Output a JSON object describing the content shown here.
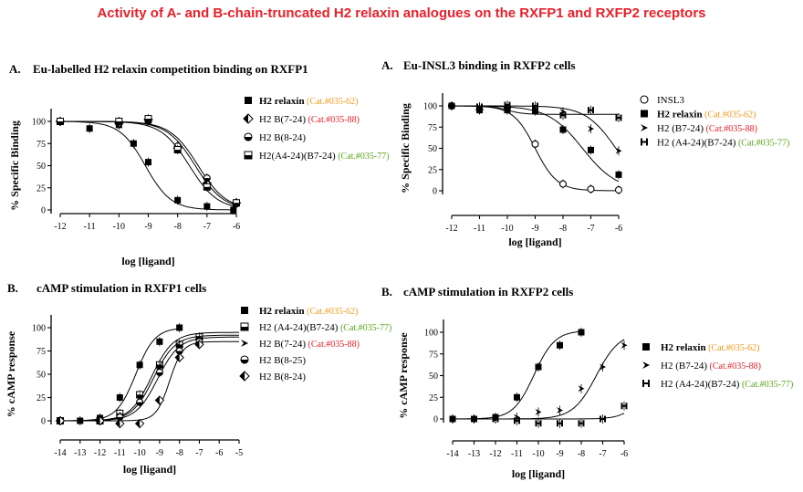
{
  "title": "Activity of A- and B-chain-truncated H2 relaxin analogues on the RXFP1 and RXFP2 receptors",
  "colors": {
    "title": "#e8202a",
    "cat_orange": "#ef9a1a",
    "cat_red": "#e8202a",
    "cat_green": "#5aa61b",
    "ink": "#000000"
  },
  "chart_data": [
    {
      "id": "p1",
      "type": "scatter",
      "panel_letter": "A.",
      "title": "Eu-labelled H2 relaxin competition binding on RXFP1",
      "xlabel": "log [ligand]",
      "ylabel": "% Specific Binding",
      "xlim": [
        -12,
        -6
      ],
      "ylim": [
        0,
        100
      ],
      "xticks": [
        "-12",
        "-11",
        "-10",
        "-9",
        "-8",
        "-7",
        "-6"
      ],
      "yticks": [
        "0",
        "25",
        "50",
        "75",
        "100"
      ],
      "legend": "right",
      "series": [
        {
          "name": "H2 relaxin",
          "cat": "(Cat.#035-62)",
          "cat_color": "orange",
          "marker": "square",
          "x": [
            -12,
            -11,
            -10,
            -9.5,
            -9,
            -8,
            -7,
            -6.1
          ],
          "y": [
            100,
            92,
            96,
            75,
            54,
            11,
            4,
            0
          ],
          "ec50": -9.1,
          "hill": 1.0
        },
        {
          "name": "H2 B(7-24)",
          "cat": "(Cat.#035-88)",
          "cat_color": "red",
          "marker": "diamond-half",
          "x": [
            -12,
            -10,
            -9,
            -8,
            -7,
            -6
          ],
          "y": [
            100,
            98,
            102,
            70,
            30,
            8
          ],
          "ec50": -7.4,
          "hill": 0.9
        },
        {
          "name": "H2 B(8-24)",
          "cat": "",
          "cat_color": "",
          "marker": "circle-half",
          "x": [
            -12,
            -10,
            -9,
            -8,
            -7,
            -6
          ],
          "y": [
            100,
            100,
            100,
            72,
            36,
            7
          ],
          "ec50": -7.3,
          "hill": 0.9
        },
        {
          "name": "H2(A4-24)(B7-24)",
          "cat": "(Cat.#035-77)",
          "cat_color": "green",
          "marker": "square-half",
          "x": [
            -12,
            -10,
            -9,
            -8,
            -7,
            -6
          ],
          "y": [
            100,
            100,
            103,
            68,
            26,
            8
          ],
          "ec50": -7.6,
          "hill": 0.9
        }
      ]
    },
    {
      "id": "p2",
      "type": "scatter",
      "panel_letter": "A.",
      "title": "Eu-INSL3 binding in RXFP2 cells",
      "xlabel": "log [ligand]",
      "ylabel": "% Specific Binding",
      "xlim": [
        -12,
        -6
      ],
      "ylim": [
        0,
        100
      ],
      "xticks": [
        "-12",
        "-11",
        "-10",
        "-9",
        "-8",
        "-7",
        "-6"
      ],
      "yticks": [
        "0",
        "25",
        "50",
        "75",
        "100"
      ],
      "legend": "right",
      "series": [
        {
          "name": "INSL3",
          "cat": "",
          "cat_color": "",
          "marker": "circle-open",
          "x": [
            -12,
            -11,
            -10,
            -9,
            -8,
            -7,
            -6
          ],
          "y": [
            100,
            96,
            98,
            55,
            8,
            2,
            1
          ],
          "ec50": -9.0,
          "hill": 1.1
        },
        {
          "name": "H2 relaxin",
          "cat": "(Cat.#035-62)",
          "cat_color": "orange",
          "marker": "square",
          "x": [
            -12,
            -11,
            -10,
            -9,
            -8,
            -7,
            -6
          ],
          "y": [
            100,
            95,
            95,
            94,
            72,
            48,
            19
          ],
          "ec50": -7.3,
          "hill": 0.7
        },
        {
          "name": "H2 (B7-24)",
          "cat": "(Cat.#035-88)",
          "cat_color": "red",
          "marker": "arrow",
          "x": [
            -12,
            -11,
            -10,
            -9,
            -8,
            -7,
            -6
          ],
          "y": [
            100,
            98,
            97,
            97,
            93,
            73,
            47
          ],
          "ec50": -6.1,
          "hill": 0.8
        },
        {
          "name": "H2 (A4-24)(B7-24)",
          "cat": "(Cat.#035-77)",
          "cat_color": "green",
          "marker": "barbell",
          "x": [
            -12,
            -11,
            -10,
            -9,
            -8,
            -7,
            -6
          ],
          "y": [
            100,
            99,
            101,
            100,
            89,
            95,
            86
          ],
          "flat": 90
        }
      ]
    },
    {
      "id": "p3",
      "type": "scatter",
      "panel_letter": "B.",
      "title": "cAMP stimulation in RXFP1 cells",
      "xlabel": "log [ligand]",
      "ylabel": "% cAMP response",
      "xlim": [
        -14,
        -5
      ],
      "ylim": [
        0,
        100
      ],
      "xticks": [
        "-14",
        "-13",
        "-12",
        "-11",
        "-10",
        "-9",
        "-8",
        "-7",
        "-6",
        "-5"
      ],
      "yticks": [
        "0",
        "25",
        "50",
        "75",
        "100"
      ],
      "legend": "right",
      "series": [
        {
          "name": "H2 relaxin",
          "cat": "(Cat.#035-62)",
          "cat_color": "orange",
          "marker": "square",
          "x": [
            -14,
            -13,
            -12,
            -11,
            -10,
            -9,
            -8
          ],
          "y": [
            0,
            0,
            3,
            25,
            60,
            85,
            100
          ],
          "ec50": -10.2,
          "hill": 0.9,
          "top": 100,
          "fit_to": -8
        },
        {
          "name": "H2 (A4-24)(B7-24)",
          "cat": "(Cat.#035-77)",
          "cat_color": "green",
          "marker": "square-half",
          "x": [
            -14,
            -12,
            -11,
            -10,
            -9,
            -8,
            -7
          ],
          "y": [
            0,
            0,
            8,
            28,
            60,
            82,
            90
          ],
          "ec50": -9.4,
          "hill": 0.8,
          "top": 95
        },
        {
          "name": "H2 B(7-24)",
          "cat": "(Cat.#035-88)",
          "cat_color": "red",
          "marker": "arrow",
          "x": [
            -14,
            -12,
            -11,
            -10,
            -9,
            -8,
            -7
          ],
          "y": [
            0,
            0,
            5,
            25,
            58,
            80,
            88
          ],
          "ec50": -9.3,
          "hill": 0.8,
          "top": 92
        },
        {
          "name": "H2 B(8-25)",
          "cat": "",
          "cat_color": "",
          "marker": "circle-half",
          "x": [
            -14,
            -12,
            -11,
            -10,
            -9,
            -8,
            -7
          ],
          "y": [
            0,
            0,
            4,
            20,
            52,
            75,
            85
          ],
          "ec50": -9.1,
          "hill": 0.8,
          "top": 90
        },
        {
          "name": "H2 B(8-24)",
          "cat": "",
          "cat_color": "",
          "marker": "diamond-half",
          "x": [
            -14,
            -12,
            -11,
            -10,
            -9,
            -8,
            -7
          ],
          "y": [
            0,
            0,
            -3,
            -3,
            22,
            68,
            82
          ],
          "ec50": -8.5,
          "hill": 1.3,
          "top": 85
        }
      ]
    },
    {
      "id": "p4",
      "type": "scatter",
      "panel_letter": "B.",
      "title": "cAMP stimulation in RXFP2 cells",
      "xlabel": "log [ligand]",
      "ylabel": "% cAMP response",
      "xlim": [
        -14,
        -6
      ],
      "ylim": [
        0,
        100
      ],
      "xticks": [
        "-14",
        "-13",
        "-12",
        "-11",
        "-10",
        "-9",
        "-8",
        "-7",
        "-6"
      ],
      "yticks": [
        "0",
        "25",
        "50",
        "75",
        "100"
      ],
      "legend": "right",
      "series": [
        {
          "name": "H2 relaxin",
          "cat": "(Cat.#035-62)",
          "cat_color": "orange",
          "marker": "square",
          "x": [
            -14,
            -13,
            -12,
            -11,
            -10,
            -9,
            -8
          ],
          "y": [
            0,
            0,
            2,
            25,
            60,
            85,
            100
          ],
          "ec50": -10.2,
          "hill": 0.9,
          "top": 102,
          "fit_to": -8
        },
        {
          "name": "H2 (B7-24)",
          "cat": "(Cat.#035-88)",
          "cat_color": "red",
          "marker": "arrow",
          "x": [
            -14,
            -13,
            -12,
            -11,
            -10,
            -9,
            -8,
            -7,
            -6
          ],
          "y": [
            0,
            0,
            0,
            2,
            8,
            10,
            35,
            60,
            85
          ],
          "ec50": -7.3,
          "hill": 0.8,
          "top": 100
        },
        {
          "name": "H2 (A4-24)(B7-24)",
          "cat": "(Cat.#035-77)",
          "cat_color": "green",
          "marker": "barbell",
          "x": [
            -14,
            -13,
            -12,
            -11,
            -10,
            -9,
            -8,
            -7,
            -6
          ],
          "y": [
            0,
            0,
            0,
            -2,
            -5,
            -5,
            -5,
            0,
            15
          ],
          "ec50": -5.3,
          "hill": 1.0,
          "top": 40
        }
      ]
    }
  ]
}
